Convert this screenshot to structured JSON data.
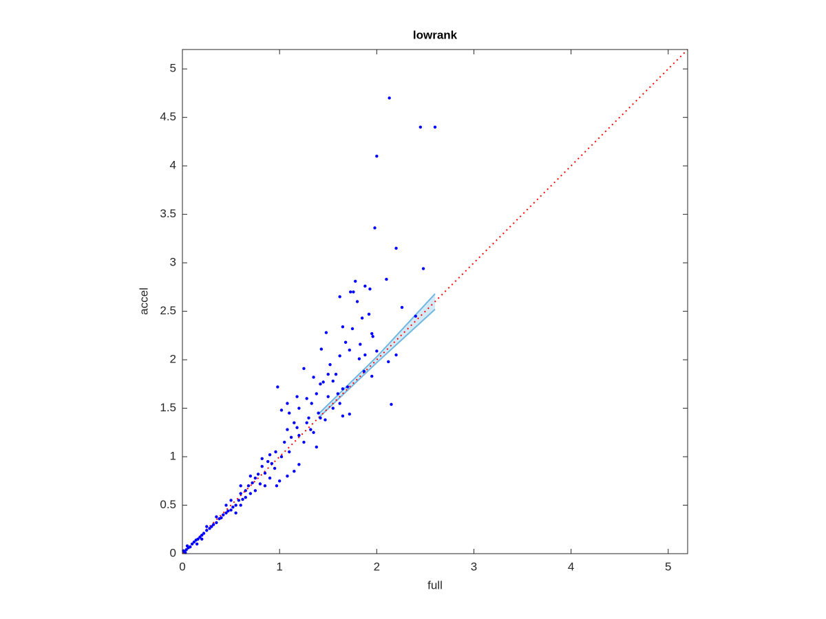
{
  "chart_data": {
    "type": "scatter",
    "title": "lowrank",
    "xlabel": "full",
    "ylabel": "accel",
    "xlim": [
      0,
      5.2
    ],
    "ylim": [
      0,
      5.2
    ],
    "xticks": [
      0,
      1,
      2,
      3,
      4,
      5
    ],
    "yticks": [
      0,
      0.5,
      1,
      1.5,
      2,
      2.5,
      3,
      3.5,
      4,
      4.5,
      5
    ],
    "color": "#0000ff",
    "x": [
      2.13,
      2.45,
      2.6,
      2.0,
      1.98,
      2.2,
      2.48,
      2.1,
      1.78,
      1.73,
      1.76,
      1.62,
      1.88,
      1.93,
      2.26,
      1.8,
      1.85,
      1.92,
      2.4,
      1.48,
      1.65,
      1.75,
      1.95,
      1.96,
      1.68,
      1.83,
      1.43,
      2.0,
      1.72,
      1.88,
      2.2,
      1.62,
      1.82,
      1.52,
      1.25,
      1.87,
      2.12,
      1.5,
      1.58,
      1.35,
      1.55,
      1.42,
      1.45,
      0.98,
      1.65,
      1.7,
      1.95,
      1.38,
      1.18,
      1.28,
      1.5,
      1.62,
      2.15,
      1.72,
      1.65,
      1.08,
      1.02,
      1.2,
      1.33,
      1.1,
      1.42,
      1.47,
      1.28,
      1.18,
      1.08,
      1.32,
      1.2,
      1.12,
      1.05,
      1.25,
      1.38,
      0.96,
      1.02,
      0.9,
      1.1,
      1.2,
      1.15,
      1.08,
      0.88,
      0.82,
      0.95,
      0.85,
      0.78,
      0.75,
      0.72,
      0.9,
      1.0,
      0.97,
      0.68,
      0.65,
      0.7,
      0.6,
      0.62,
      0.58,
      0.55,
      0.65,
      0.52,
      0.5,
      0.47,
      0.45,
      0.42,
      0.4,
      0.38,
      0.35,
      0.32,
      0.3,
      0.28,
      0.25,
      0.22,
      0.2,
      0.18,
      0.16,
      0.14,
      0.12,
      0.1,
      0.08,
      0.06,
      0.04,
      0.02,
      0.01,
      0.03,
      0.05,
      0.15,
      0.2,
      0.55,
      0.6,
      0.75,
      0.8,
      0.85,
      0.45,
      0.5,
      0.35,
      0.25,
      0.7,
      0.82,
      0.6,
      1.3,
      1.15,
      0.92,
      1.35,
      1.4,
      1.6,
      1.55
    ],
    "y": [
      4.7,
      4.4,
      4.4,
      4.1,
      3.36,
      3.15,
      2.94,
      2.83,
      2.81,
      2.7,
      2.7,
      2.65,
      2.76,
      2.73,
      2.54,
      2.6,
      2.43,
      2.47,
      2.45,
      2.28,
      2.34,
      2.32,
      2.27,
      2.24,
      2.18,
      2.16,
      2.11,
      2.09,
      2.1,
      2.05,
      2.05,
      2.04,
      2.01,
      1.95,
      1.91,
      1.88,
      1.98,
      1.85,
      1.85,
      1.82,
      1.78,
      1.75,
      1.77,
      1.72,
      1.7,
      1.72,
      1.83,
      1.65,
      1.62,
      1.6,
      1.62,
      1.55,
      1.54,
      1.44,
      1.42,
      1.55,
      1.48,
      1.5,
      1.55,
      1.45,
      1.4,
      1.38,
      1.35,
      1.3,
      1.28,
      1.28,
      1.22,
      1.2,
      1.15,
      1.15,
      1.1,
      1.05,
      1.0,
      1.02,
      1.05,
      0.92,
      0.85,
      0.8,
      0.95,
      0.9,
      0.88,
      0.83,
      0.82,
      0.78,
      0.73,
      0.78,
      0.75,
      0.7,
      0.7,
      0.65,
      0.62,
      0.62,
      0.56,
      0.55,
      0.5,
      0.58,
      0.48,
      0.45,
      0.44,
      0.42,
      0.4,
      0.37,
      0.36,
      0.32,
      0.3,
      0.28,
      0.26,
      0.24,
      0.21,
      0.19,
      0.17,
      0.15,
      0.14,
      0.12,
      0.1,
      0.07,
      0.06,
      0.04,
      0.02,
      0.03,
      0.01,
      0.08,
      0.1,
      0.15,
      0.42,
      0.5,
      0.65,
      0.72,
      0.7,
      0.5,
      0.55,
      0.38,
      0.28,
      0.8,
      0.98,
      0.7,
      1.4,
      1.35,
      0.93,
      1.25,
      1.45,
      1.65,
      1.5
    ],
    "reference_line": {
      "x": [
        0,
        5.2
      ],
      "y": [
        0,
        5.2
      ],
      "color": "#ff0000"
    },
    "band": {
      "x": [
        1.4,
        2.0,
        2.6
      ],
      "lower": [
        1.4,
        1.97,
        2.52
      ],
      "upper": [
        1.44,
        2.03,
        2.68
      ],
      "color": "#6fb6e0"
    }
  }
}
